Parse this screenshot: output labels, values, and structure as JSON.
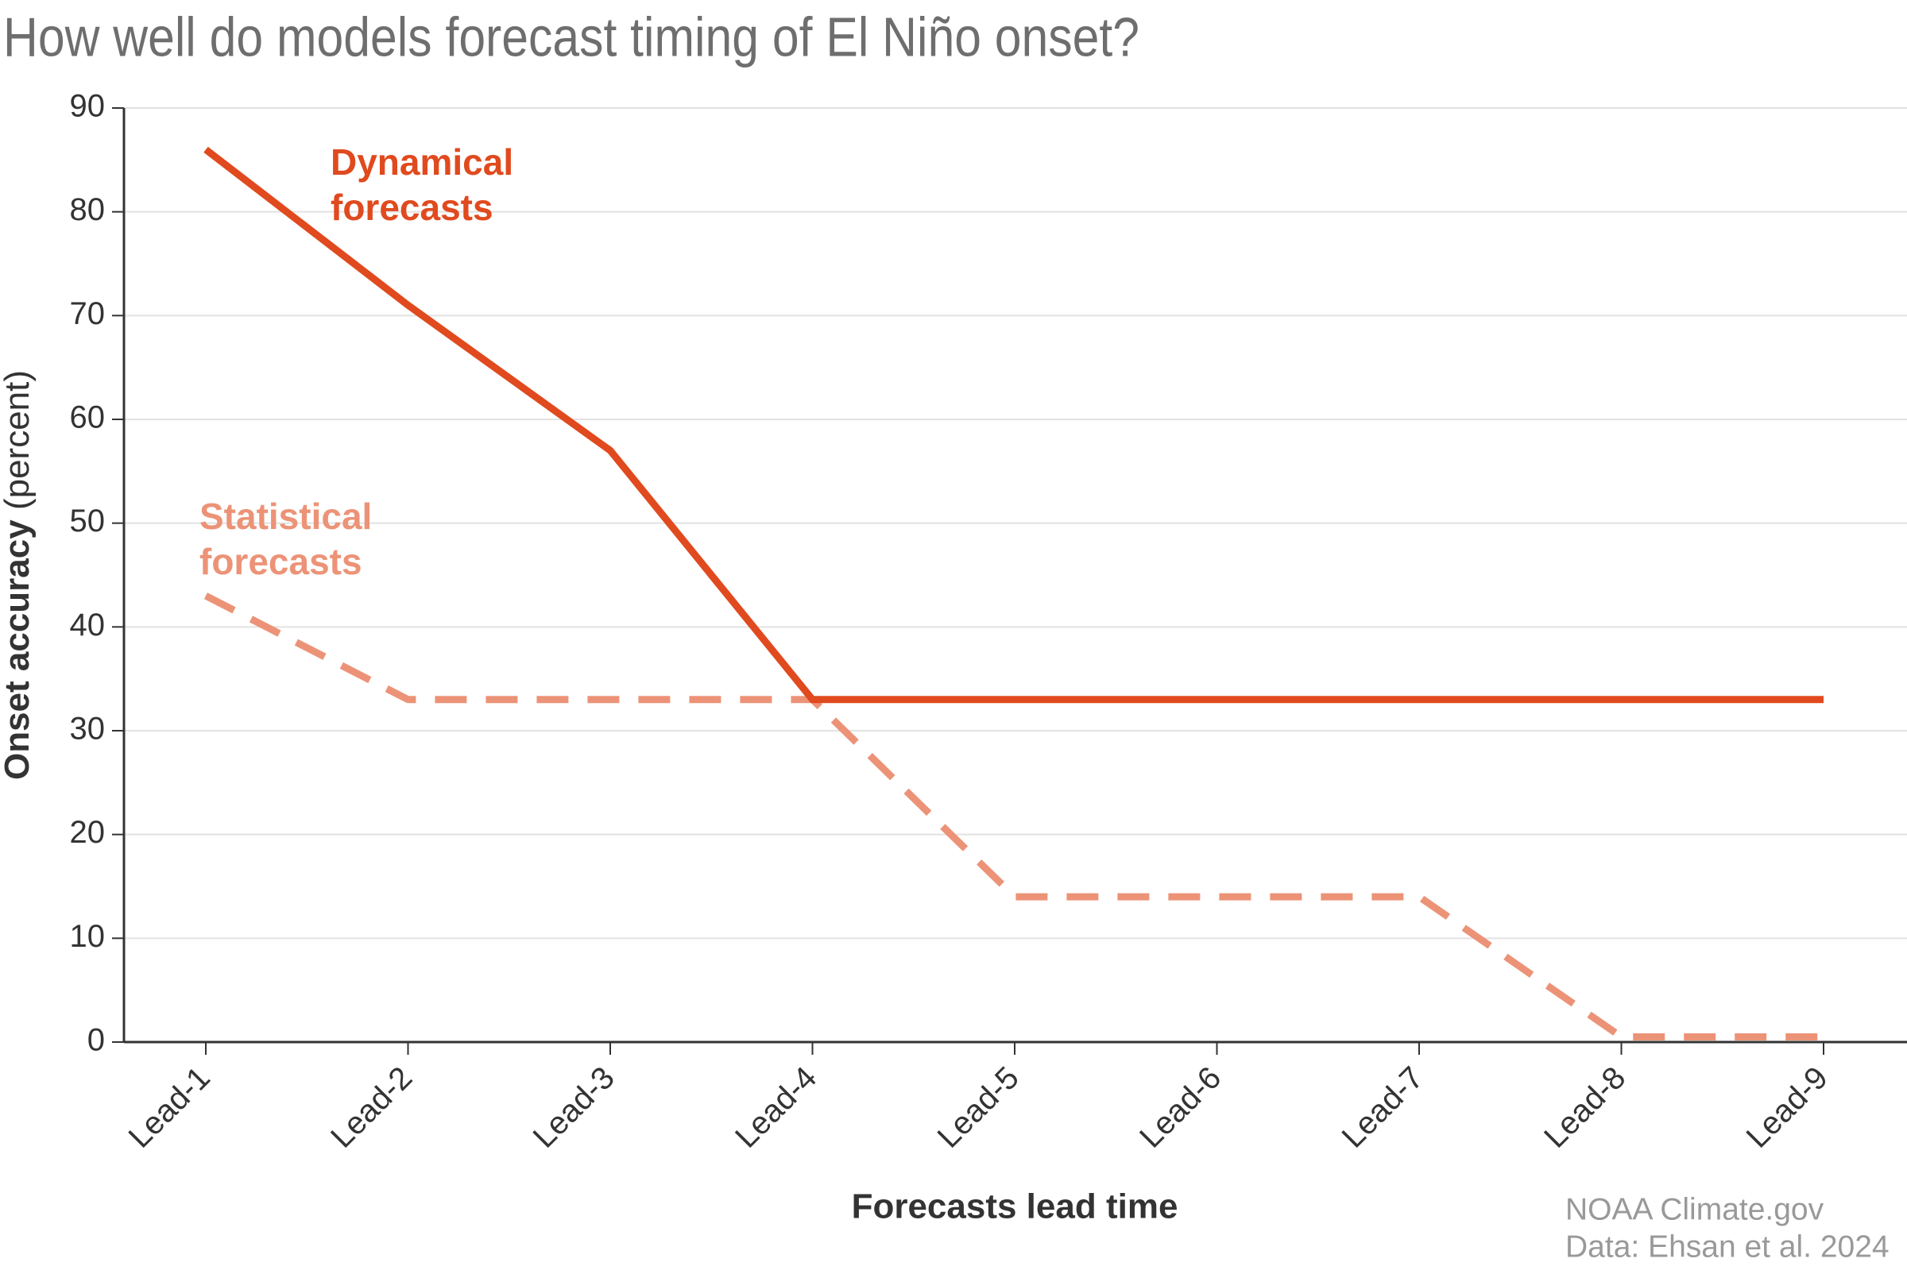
{
  "chart_data": {
    "type": "line",
    "title": "How well do models forecast timing of El Niño onset?",
    "x_label": "Forecasts lead time",
    "y_label": "Onset accuracy",
    "y_label_unit": "(percent)",
    "categories": [
      "Lead-1",
      "Lead-2",
      "Lead-3",
      "Lead-4",
      "Lead-5",
      "Lead-6",
      "Lead-7",
      "Lead-8",
      "Lead-9"
    ],
    "series": [
      {
        "name": "Dynamical forecasts",
        "color": "#e04a1e",
        "dash": false,
        "values": [
          86,
          71,
          57,
          33,
          33,
          33,
          33,
          33,
          33
        ]
      },
      {
        "name": "Statistical forecasts",
        "color": "#ec9377",
        "dash": true,
        "values": [
          43,
          33,
          33,
          33,
          14,
          14,
          14,
          0.5,
          0.5
        ]
      }
    ],
    "ylim": [
      0,
      90
    ],
    "yticks": [
      0,
      10,
      20,
      30,
      40,
      50,
      60,
      70,
      80,
      90
    ],
    "grid": true,
    "source": [
      "NOAA Climate.gov",
      "Data: Ehsan et al. 2024"
    ]
  }
}
